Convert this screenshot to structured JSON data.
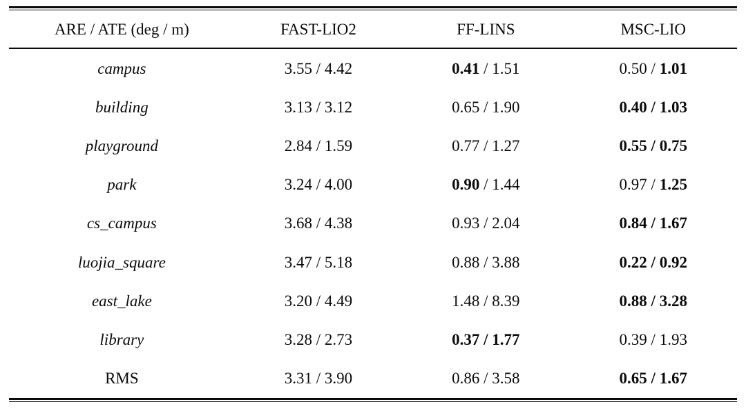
{
  "table": {
    "separator": "/",
    "header": [
      "ARE / ATE (deg / m)",
      "FAST-LIO2",
      "FF-LINS",
      "MSC-LIO"
    ],
    "rows": [
      {
        "label": "campus",
        "label_italic": true,
        "cells": [
          {
            "are": "3.55",
            "ate": "4.42",
            "are_bold": false,
            "ate_bold": false
          },
          {
            "are": "0.41",
            "ate": "1.51",
            "are_bold": true,
            "ate_bold": false
          },
          {
            "are": "0.50",
            "ate": "1.01",
            "are_bold": false,
            "ate_bold": true
          }
        ]
      },
      {
        "label": "building",
        "label_italic": true,
        "cells": [
          {
            "are": "3.13",
            "ate": "3.12",
            "are_bold": false,
            "ate_bold": false
          },
          {
            "are": "0.65",
            "ate": "1.90",
            "are_bold": false,
            "ate_bold": false
          },
          {
            "are": "0.40",
            "ate": "1.03",
            "are_bold": true,
            "ate_bold": true
          }
        ]
      },
      {
        "label": "playground",
        "label_italic": true,
        "cells": [
          {
            "are": "2.84",
            "ate": "1.59",
            "are_bold": false,
            "ate_bold": false
          },
          {
            "are": "0.77",
            "ate": "1.27",
            "are_bold": false,
            "ate_bold": false
          },
          {
            "are": "0.55",
            "ate": "0.75",
            "are_bold": true,
            "ate_bold": true
          }
        ]
      },
      {
        "label": "park",
        "label_italic": true,
        "cells": [
          {
            "are": "3.24",
            "ate": "4.00",
            "are_bold": false,
            "ate_bold": false
          },
          {
            "are": "0.90",
            "ate": "1.44",
            "are_bold": true,
            "ate_bold": false
          },
          {
            "are": "0.97",
            "ate": "1.25",
            "are_bold": false,
            "ate_bold": true
          }
        ]
      },
      {
        "label": "cs_campus",
        "label_italic": true,
        "cells": [
          {
            "are": "3.68",
            "ate": "4.38",
            "are_bold": false,
            "ate_bold": false
          },
          {
            "are": "0.93",
            "ate": "2.04",
            "are_bold": false,
            "ate_bold": false
          },
          {
            "are": "0.84",
            "ate": "1.67",
            "are_bold": true,
            "ate_bold": true
          }
        ]
      },
      {
        "label": "luojia_square",
        "label_italic": true,
        "cells": [
          {
            "are": "3.47",
            "ate": "5.18",
            "are_bold": false,
            "ate_bold": false
          },
          {
            "are": "0.88",
            "ate": "3.88",
            "are_bold": false,
            "ate_bold": false
          },
          {
            "are": "0.22",
            "ate": "0.92",
            "are_bold": true,
            "ate_bold": true
          }
        ]
      },
      {
        "label": "east_lake",
        "label_italic": true,
        "cells": [
          {
            "are": "3.20",
            "ate": "4.49",
            "are_bold": false,
            "ate_bold": false
          },
          {
            "are": "1.48",
            "ate": "8.39",
            "are_bold": false,
            "ate_bold": false
          },
          {
            "are": "0.88",
            "ate": "3.28",
            "are_bold": true,
            "ate_bold": true
          }
        ]
      },
      {
        "label": "library",
        "label_italic": true,
        "cells": [
          {
            "are": "3.28",
            "ate": "2.73",
            "are_bold": false,
            "ate_bold": false
          },
          {
            "are": "0.37",
            "ate": "1.77",
            "are_bold": true,
            "ate_bold": true
          },
          {
            "are": "0.39",
            "ate": "1.93",
            "are_bold": false,
            "ate_bold": false
          }
        ]
      },
      {
        "label": "RMS",
        "label_italic": false,
        "cells": [
          {
            "are": "3.31",
            "ate": "3.90",
            "are_bold": false,
            "ate_bold": false
          },
          {
            "are": "0.86",
            "ate": "3.58",
            "are_bold": false,
            "ate_bold": false
          },
          {
            "are": "0.65",
            "ate": "1.67",
            "are_bold": true,
            "ate_bold": true
          }
        ]
      }
    ]
  }
}
